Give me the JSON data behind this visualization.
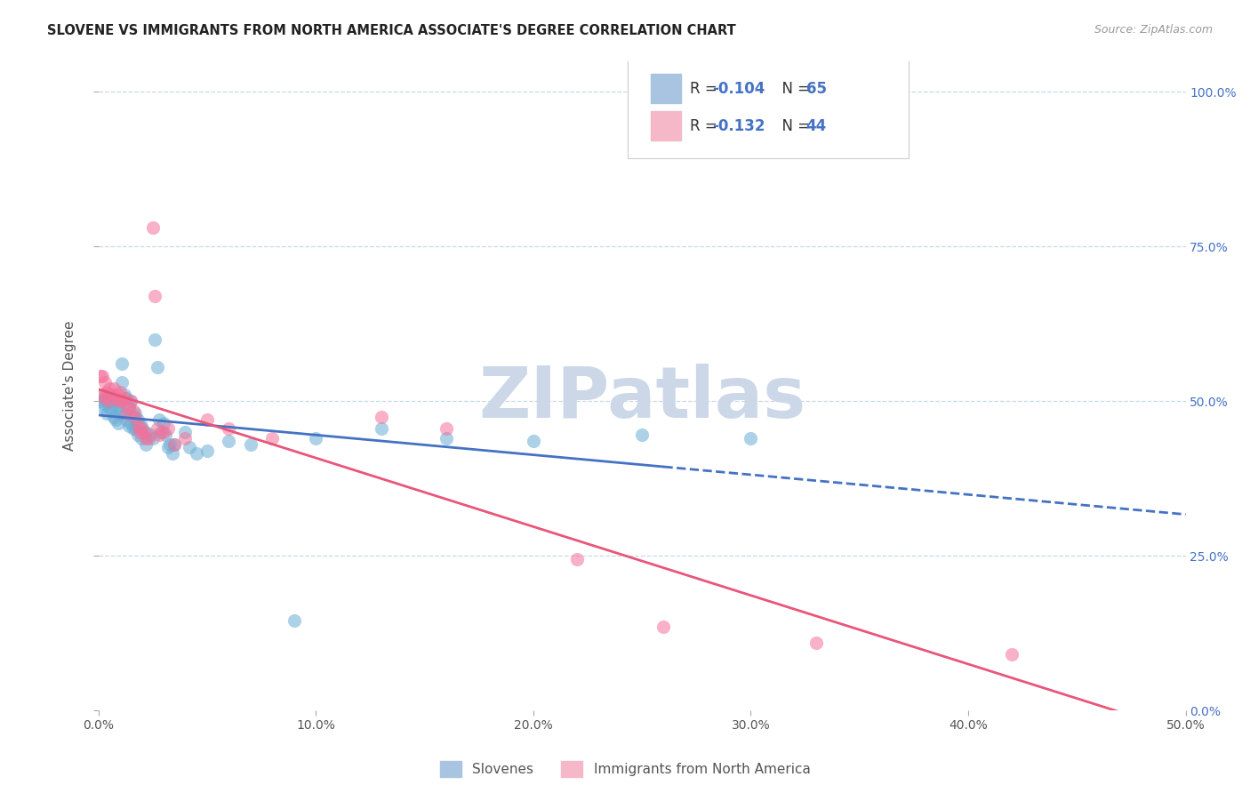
{
  "title": "SLOVENE VS IMMIGRANTS FROM NORTH AMERICA ASSOCIATE'S DEGREE CORRELATION CHART",
  "source": "Source: ZipAtlas.com",
  "ylabel_left": "Associate's Degree",
  "legend_labels_bottom": [
    "Slovenes",
    "Immigrants from North America"
  ],
  "blue_color": "#6baed6",
  "pink_color": "#f4719a",
  "trend_blue": "#4472c4",
  "trend_pink": "#e8567a",
  "blue_scatter": [
    [
      0.001,
      0.5
    ],
    [
      0.002,
      0.51
    ],
    [
      0.002,
      0.49
    ],
    [
      0.003,
      0.505
    ],
    [
      0.003,
      0.495
    ],
    [
      0.004,
      0.5
    ],
    [
      0.004,
      0.48
    ],
    [
      0.005,
      0.51
    ],
    [
      0.005,
      0.49
    ],
    [
      0.006,
      0.505
    ],
    [
      0.006,
      0.485
    ],
    [
      0.007,
      0.5
    ],
    [
      0.007,
      0.475
    ],
    [
      0.008,
      0.495
    ],
    [
      0.008,
      0.47
    ],
    [
      0.009,
      0.49
    ],
    [
      0.009,
      0.465
    ],
    [
      0.01,
      0.5
    ],
    [
      0.01,
      0.48
    ],
    [
      0.011,
      0.56
    ],
    [
      0.011,
      0.53
    ],
    [
      0.012,
      0.51
    ],
    [
      0.012,
      0.48
    ],
    [
      0.013,
      0.505
    ],
    [
      0.013,
      0.47
    ],
    [
      0.014,
      0.49
    ],
    [
      0.014,
      0.46
    ],
    [
      0.015,
      0.5
    ],
    [
      0.015,
      0.465
    ],
    [
      0.016,
      0.475
    ],
    [
      0.016,
      0.455
    ],
    [
      0.017,
      0.48
    ],
    [
      0.017,
      0.455
    ],
    [
      0.018,
      0.47
    ],
    [
      0.018,
      0.445
    ],
    [
      0.019,
      0.46
    ],
    [
      0.02,
      0.46
    ],
    [
      0.02,
      0.44
    ],
    [
      0.022,
      0.45
    ],
    [
      0.022,
      0.43
    ],
    [
      0.024,
      0.445
    ],
    [
      0.025,
      0.44
    ],
    [
      0.026,
      0.6
    ],
    [
      0.027,
      0.555
    ],
    [
      0.028,
      0.47
    ],
    [
      0.029,
      0.45
    ],
    [
      0.03,
      0.465
    ],
    [
      0.031,
      0.445
    ],
    [
      0.032,
      0.425
    ],
    [
      0.033,
      0.43
    ],
    [
      0.034,
      0.415
    ],
    [
      0.035,
      0.43
    ],
    [
      0.04,
      0.45
    ],
    [
      0.042,
      0.425
    ],
    [
      0.045,
      0.415
    ],
    [
      0.05,
      0.42
    ],
    [
      0.06,
      0.435
    ],
    [
      0.07,
      0.43
    ],
    [
      0.09,
      0.145
    ],
    [
      0.1,
      0.44
    ],
    [
      0.13,
      0.455
    ],
    [
      0.16,
      0.44
    ],
    [
      0.2,
      0.435
    ],
    [
      0.25,
      0.445
    ],
    [
      0.3,
      0.44
    ]
  ],
  "pink_scatter": [
    [
      0.001,
      0.54
    ],
    [
      0.002,
      0.54
    ],
    [
      0.002,
      0.51
    ],
    [
      0.003,
      0.53
    ],
    [
      0.003,
      0.505
    ],
    [
      0.004,
      0.515
    ],
    [
      0.005,
      0.52
    ],
    [
      0.005,
      0.5
    ],
    [
      0.006,
      0.51
    ],
    [
      0.007,
      0.52
    ],
    [
      0.008,
      0.505
    ],
    [
      0.009,
      0.51
    ],
    [
      0.01,
      0.5
    ],
    [
      0.01,
      0.515
    ],
    [
      0.011,
      0.5
    ],
    [
      0.012,
      0.505
    ],
    [
      0.013,
      0.48
    ],
    [
      0.014,
      0.49
    ],
    [
      0.015,
      0.5
    ],
    [
      0.016,
      0.485
    ],
    [
      0.017,
      0.475
    ],
    [
      0.018,
      0.46
    ],
    [
      0.019,
      0.45
    ],
    [
      0.02,
      0.455
    ],
    [
      0.021,
      0.45
    ],
    [
      0.022,
      0.44
    ],
    [
      0.023,
      0.44
    ],
    [
      0.025,
      0.78
    ],
    [
      0.026,
      0.67
    ],
    [
      0.027,
      0.455
    ],
    [
      0.028,
      0.445
    ],
    [
      0.03,
      0.45
    ],
    [
      0.032,
      0.455
    ],
    [
      0.035,
      0.43
    ],
    [
      0.04,
      0.44
    ],
    [
      0.05,
      0.47
    ],
    [
      0.06,
      0.455
    ],
    [
      0.08,
      0.44
    ],
    [
      0.13,
      0.475
    ],
    [
      0.16,
      0.455
    ],
    [
      0.22,
      0.245
    ],
    [
      0.26,
      0.135
    ],
    [
      0.33,
      0.11
    ],
    [
      0.42,
      0.09
    ]
  ],
  "xlim": [
    0.0,
    0.5
  ],
  "ylim": [
    0.0,
    1.05
  ],
  "background_color": "#ffffff",
  "grid_color": "#c8d8e8",
  "watermark": "ZIPatlas",
  "watermark_color": "#ccd8e8"
}
